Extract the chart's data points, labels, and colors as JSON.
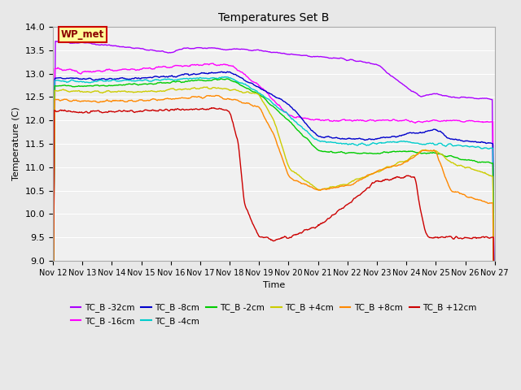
{
  "title": "Temperatures Set B",
  "xlabel": "Time",
  "ylabel": "Temperature (C)",
  "ylim": [
    9.0,
    14.0
  ],
  "yticks": [
    9.0,
    9.5,
    10.0,
    10.5,
    11.0,
    11.5,
    12.0,
    12.5,
    13.0,
    13.5,
    14.0
  ],
  "figure_bg": "#e8e8e8",
  "plot_bg": "#f0f0f0",
  "grid_color": "#ffffff",
  "series": [
    {
      "label": "TC_B -32cm",
      "color": "#aa00ff"
    },
    {
      "label": "TC_B -16cm",
      "color": "#ff00ff"
    },
    {
      "label": "TC_B -8cm",
      "color": "#0000cc"
    },
    {
      "label": "TC_B -4cm",
      "color": "#00cccc"
    },
    {
      "label": "TC_B -2cm",
      "color": "#00cc00"
    },
    {
      "label": "TC_B +4cm",
      "color": "#cccc00"
    },
    {
      "label": "TC_B +8cm",
      "color": "#ff8800"
    },
    {
      "label": "TC_B +12cm",
      "color": "#cc0000"
    }
  ],
  "wp_met_label": "WP_met",
  "wp_met_box_color": "#ffff99",
  "wp_met_border_color": "#cc0000",
  "wp_met_text_color": "#8b0000",
  "n_days": 15,
  "start_day": 12,
  "points_per_day": 48,
  "line_width": 1.0,
  "tick_fontsize": 7,
  "title_fontsize": 10,
  "ylabel_fontsize": 8,
  "xlabel_fontsize": 8,
  "legend_fontsize": 7.5
}
